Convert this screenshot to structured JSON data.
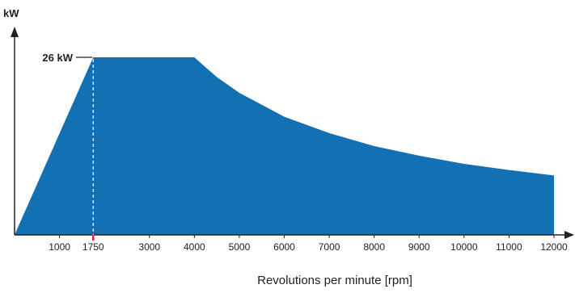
{
  "chart_data": {
    "type": "area",
    "title": "",
    "ylabel": "kW",
    "xlabel": "Revolutions per minute [rpm]",
    "xlim": [
      0,
      12500
    ],
    "ylim": [
      0,
      26
    ],
    "x_ticks": [
      1000,
      1750,
      3000,
      4000,
      5000,
      6000,
      7000,
      8000,
      9000,
      10000,
      11000,
      12000
    ],
    "x_tick_labels": [
      "1000",
      "1750",
      "3000",
      "4000",
      "5000",
      "6000",
      "7000",
      "8000",
      "9000",
      "10000",
      "11000",
      "12000"
    ],
    "highlight_x": 1750,
    "peak_label": "26 kW",
    "peak_value": 26,
    "fill_color": "#1370b3",
    "highlight_tick_color": "#e8174a",
    "series": [
      {
        "x": [
          0,
          1750,
          4000,
          4500,
          5000,
          6000,
          7000,
          8000,
          9000,
          10000,
          11000,
          12000
        ],
        "values": [
          0,
          26,
          26,
          23.1,
          20.8,
          17.3,
          14.9,
          13.0,
          11.6,
          10.4,
          9.5,
          8.7
        ]
      }
    ]
  }
}
